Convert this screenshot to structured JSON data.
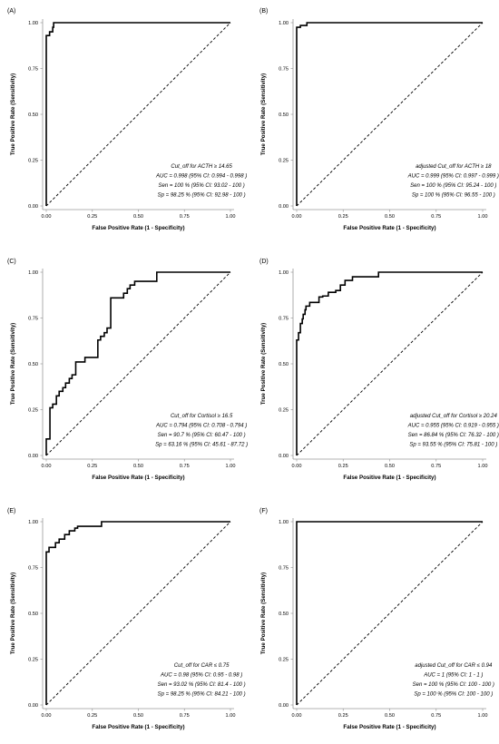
{
  "chart_data": [
    {
      "panel_label": "(A)",
      "type": "line",
      "xlabel": "False Positive Rate (1 - Specificity)",
      "ylabel": "True Positive Rate (Sensitivity)",
      "xlim": [
        0,
        1
      ],
      "ylim": [
        0,
        1
      ],
      "xticks": [
        "0.00",
        "0.25",
        "0.50",
        "0.75",
        "1.00"
      ],
      "yticks": [
        "0.00",
        "0.25",
        "0.50",
        "0.75",
        "1.00"
      ],
      "grid": false,
      "series": [
        {
          "style": "solid",
          "x": [
            0,
            0,
            0.018,
            0.018,
            0.035,
            0.035,
            0.04,
            0.04,
            1
          ],
          "y": [
            0,
            0.93,
            0.93,
            0.95,
            0.95,
            0.975,
            0.975,
            1,
            1
          ]
        },
        {
          "style": "dashed",
          "x": [
            0,
            1
          ],
          "y": [
            0,
            1
          ]
        }
      ],
      "annotations": [
        "Cut_off for ACTH ≥  14.65",
        "AUC =  0.998  (95% CI:  0.994  - 0.998 )",
        "Sen =  100 %  (95% CI:  93.02  -  100 )",
        "Sp =  98.25 %  (95% CI:  92.98  -  100 )"
      ]
    },
    {
      "panel_label": "(B)",
      "type": "line",
      "xlabel": "False Positive Rate (1 - Specificity)",
      "ylabel": "True Positive Rate (Sensitivity)",
      "xlim": [
        0,
        1
      ],
      "ylim": [
        0,
        1
      ],
      "xticks": [
        "0.00",
        "0.25",
        "0.50",
        "0.75",
        "1.00"
      ],
      "yticks": [
        "0.00",
        "0.25",
        "0.50",
        "0.75",
        "1.00"
      ],
      "grid": false,
      "series": [
        {
          "style": "solid",
          "x": [
            0,
            0,
            0.02,
            0.02,
            0.055,
            0.055,
            1
          ],
          "y": [
            0,
            0.975,
            0.975,
            0.985,
            0.985,
            1,
            1
          ]
        },
        {
          "style": "dashed",
          "x": [
            0,
            1
          ],
          "y": [
            0,
            1
          ]
        }
      ],
      "annotations": [
        "adjusted Cut_off for ACTH ≥  18",
        "AUC =  0.999  (95% CI:  0.997  - 0.999 )",
        "Sen =  100 %  (95% CI:  95.24  -  100 )",
        "Sp =  100 %  (95% CI:  96.55  -  100 )"
      ]
    },
    {
      "panel_label": "(C)",
      "type": "line",
      "xlabel": "False Positive Rate (1 - Specificity)",
      "ylabel": "True Positive Rate (Sensitivity)",
      "xlim": [
        0,
        1
      ],
      "ylim": [
        0,
        1
      ],
      "xticks": [
        "0.00",
        "0.25",
        "0.50",
        "0.75",
        "1.00"
      ],
      "yticks": [
        "0.00",
        "0.25",
        "0.50",
        "0.75",
        "1.00"
      ],
      "grid": false,
      "series": [
        {
          "style": "solid",
          "x": [
            0,
            0,
            0.02,
            0.02,
            0.035,
            0.035,
            0.055,
            0.055,
            0.07,
            0.07,
            0.09,
            0.09,
            0.105,
            0.105,
            0.125,
            0.125,
            0.14,
            0.14,
            0.16,
            0.16,
            0.175,
            0.175,
            0.21,
            0.21,
            0.28,
            0.28,
            0.295,
            0.295,
            0.315,
            0.315,
            0.33,
            0.33,
            0.35,
            0.35,
            0.385,
            0.385,
            0.42,
            0.42,
            0.44,
            0.44,
            0.455,
            0.455,
            0.48,
            0.48,
            0.6,
            0.6,
            1
          ],
          "y": [
            0,
            0.09,
            0.09,
            0.26,
            0.26,
            0.28,
            0.28,
            0.325,
            0.325,
            0.35,
            0.35,
            0.37,
            0.37,
            0.395,
            0.395,
            0.42,
            0.42,
            0.44,
            0.44,
            0.51,
            0.51,
            0.51,
            0.51,
            0.535,
            0.535,
            0.63,
            0.63,
            0.65,
            0.65,
            0.67,
            0.67,
            0.695,
            0.695,
            0.86,
            0.86,
            0.86,
            0.86,
            0.885,
            0.885,
            0.91,
            0.91,
            0.93,
            0.93,
            0.95,
            0.95,
            1,
            1
          ]
        },
        {
          "style": "dashed",
          "x": [
            0,
            1
          ],
          "y": [
            0,
            1
          ]
        }
      ],
      "annotations": [
        "Cut_off for Cortisol ≥  16.5",
        "AUC =  0.794  (95% CI:  0.708  - 0.794 )",
        "Sen =  90.7 %  (95% CI:  60.47  -  100 )",
        "Sp =  63.16 %  (95% CI:  45.61  -  87.72 )"
      ]
    },
    {
      "panel_label": "(D)",
      "type": "line",
      "xlabel": "False Positive Rate (1 - Specificity)",
      "ylabel": "True Positive Rate (Sensitivity)",
      "xlim": [
        0,
        1
      ],
      "ylim": [
        0,
        1
      ],
      "xticks": [
        "0.00",
        "0.25",
        "0.50",
        "0.75",
        "1.00"
      ],
      "yticks": [
        "0.00",
        "0.25",
        "0.50",
        "0.75",
        "1.00"
      ],
      "grid": false,
      "series": [
        {
          "style": "solid",
          "x": [
            0,
            0,
            0.01,
            0.01,
            0.02,
            0.02,
            0.03,
            0.03,
            0.035,
            0.035,
            0.045,
            0.045,
            0.05,
            0.05,
            0.07,
            0.07,
            0.09,
            0.09,
            0.12,
            0.12,
            0.14,
            0.14,
            0.17,
            0.17,
            0.21,
            0.21,
            0.235,
            0.235,
            0.26,
            0.26,
            0.3,
            0.3,
            0.44,
            0.44,
            1
          ],
          "y": [
            0,
            0.63,
            0.63,
            0.67,
            0.67,
            0.72,
            0.72,
            0.745,
            0.745,
            0.77,
            0.77,
            0.795,
            0.795,
            0.815,
            0.815,
            0.835,
            0.835,
            0.835,
            0.835,
            0.865,
            0.865,
            0.87,
            0.87,
            0.89,
            0.89,
            0.9,
            0.9,
            0.93,
            0.93,
            0.955,
            0.955,
            0.975,
            0.975,
            1,
            1
          ]
        },
        {
          "style": "dashed",
          "x": [
            0,
            1
          ],
          "y": [
            0,
            1
          ]
        }
      ],
      "annotations": [
        "adjusted Cut_off for Cortisol ≥  20.24",
        "AUC =  0.955  (95% CI:  0.919  - 0.955 )",
        "Sen =  86.84 %  (95% CI:  76.32  -  100 )",
        "Sp =  93.55 %  (95% CI:  75.81  -  100 )"
      ]
    },
    {
      "panel_label": "(E)",
      "type": "line",
      "xlabel": "False Positive Rate (1 - Specificity)",
      "ylabel": "True Positive Rate (Sensitivity)",
      "xlim": [
        0,
        1
      ],
      "ylim": [
        0,
        1
      ],
      "xticks": [
        "0.00",
        "0.25",
        "0.50",
        "0.75",
        "1.00"
      ],
      "yticks": [
        "0.00",
        "0.25",
        "0.50",
        "0.75",
        "1.00"
      ],
      "grid": false,
      "series": [
        {
          "style": "solid",
          "x": [
            0,
            0,
            0.015,
            0.015,
            0.05,
            0.05,
            0.07,
            0.07,
            0.1,
            0.1,
            0.125,
            0.125,
            0.14,
            0.14,
            0.155,
            0.155,
            0.17,
            0.17,
            0.3,
            0.3,
            1
          ],
          "y": [
            0,
            0.835,
            0.835,
            0.86,
            0.86,
            0.885,
            0.885,
            0.905,
            0.905,
            0.93,
            0.93,
            0.95,
            0.95,
            0.95,
            0.95,
            0.965,
            0.965,
            0.975,
            0.975,
            1,
            1
          ]
        },
        {
          "style": "dashed",
          "x": [
            0,
            1
          ],
          "y": [
            0,
            1
          ]
        }
      ],
      "annotations": [
        "Cut_off for CAR ≤  0.75",
        "AUC =  0.98  (95% CI:  0.95  - 0.98 )",
        "Sen =  93.02 %  (95% CI:  81.4  -  100 )",
        "Sp =  98.25 %  (95% CI:  84.21  -  100 )"
      ]
    },
    {
      "panel_label": "(F)",
      "type": "line",
      "xlabel": "False Positive Rate (1 - Specificity)",
      "ylabel": "True Positive Rate (Sensitivity)",
      "xlim": [
        0,
        1
      ],
      "ylim": [
        0,
        1
      ],
      "xticks": [
        "0.00",
        "0.25",
        "0.50",
        "0.75",
        "1.00"
      ],
      "yticks": [
        "0.00",
        "0.25",
        "0.50",
        "0.75",
        "1.00"
      ],
      "grid": false,
      "series": [
        {
          "style": "solid",
          "x": [
            0,
            0,
            1
          ],
          "y": [
            0,
            1,
            1
          ]
        },
        {
          "style": "dashed",
          "x": [
            0,
            1
          ],
          "y": [
            0,
            1
          ]
        }
      ],
      "annotations": [
        "adjusted Cut_off for CAR ≤  0.94",
        "AUC =  1  (95% CI:  1  -  1 )",
        "Sen =  100 %  (95% CI:  100  -  100 )",
        "Sp =  100 %  (95% CI:  100  -  100 )"
      ]
    }
  ],
  "colors": {
    "curve": "#000000",
    "reference": "#000000",
    "axis": "#9a9a9a",
    "background": "#ffffff"
  }
}
